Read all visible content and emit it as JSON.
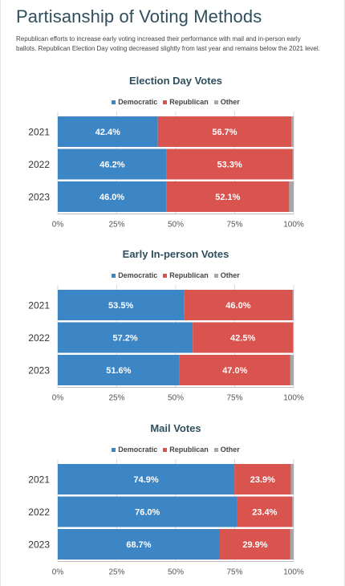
{
  "page": {
    "title": "Partisanship of Voting Methods",
    "subtitle": "Republican efforts to increase early voting increased their performance with mail and in-person early ballots. Republican Election Day voting decreased slightly from last year and remains below the 2021 level."
  },
  "colors": {
    "democratic": "#3d86c6",
    "republican": "#d9534f",
    "other": "#a6a6a6"
  },
  "chart_data": [
    {
      "type": "bar",
      "orientation": "horizontal",
      "stacked": true,
      "title": "Election Day Votes",
      "categories": [
        "2021",
        "2022",
        "2023"
      ],
      "series": [
        {
          "name": "Democratic",
          "values": [
            42.4,
            46.2,
            46.0
          ]
        },
        {
          "name": "Republican",
          "values": [
            56.7,
            53.3,
            52.1
          ]
        },
        {
          "name": "Other",
          "values": [
            0.9,
            0.5,
            1.9
          ]
        }
      ],
      "xlim": [
        0,
        100
      ],
      "xticks": [
        "0%",
        "25%",
        "50%",
        "75%",
        "100%"
      ],
      "legend": "top-center"
    },
    {
      "type": "bar",
      "orientation": "horizontal",
      "stacked": true,
      "title": "Early In-person Votes",
      "categories": [
        "2021",
        "2022",
        "2023"
      ],
      "series": [
        {
          "name": "Democratic",
          "values": [
            53.5,
            57.2,
            51.6
          ]
        },
        {
          "name": "Republican",
          "values": [
            46.0,
            42.5,
            47.0
          ]
        },
        {
          "name": "Other",
          "values": [
            0.5,
            0.3,
            1.4
          ]
        }
      ],
      "xlim": [
        0,
        100
      ],
      "xticks": [
        "0%",
        "25%",
        "50%",
        "75%",
        "100%"
      ],
      "legend": "top-center"
    },
    {
      "type": "bar",
      "orientation": "horizontal",
      "stacked": true,
      "title": "Mail Votes",
      "categories": [
        "2021",
        "2022",
        "2023"
      ],
      "series": [
        {
          "name": "Democratic",
          "values": [
            74.9,
            76.0,
            68.7
          ]
        },
        {
          "name": "Republican",
          "values": [
            23.9,
            23.4,
            29.9
          ]
        },
        {
          "name": "Other",
          "values": [
            1.2,
            0.6,
            1.4
          ]
        }
      ],
      "xlim": [
        0,
        100
      ],
      "xticks": [
        "0%",
        "25%",
        "50%",
        "75%",
        "100%"
      ],
      "legend": "top-center"
    }
  ]
}
